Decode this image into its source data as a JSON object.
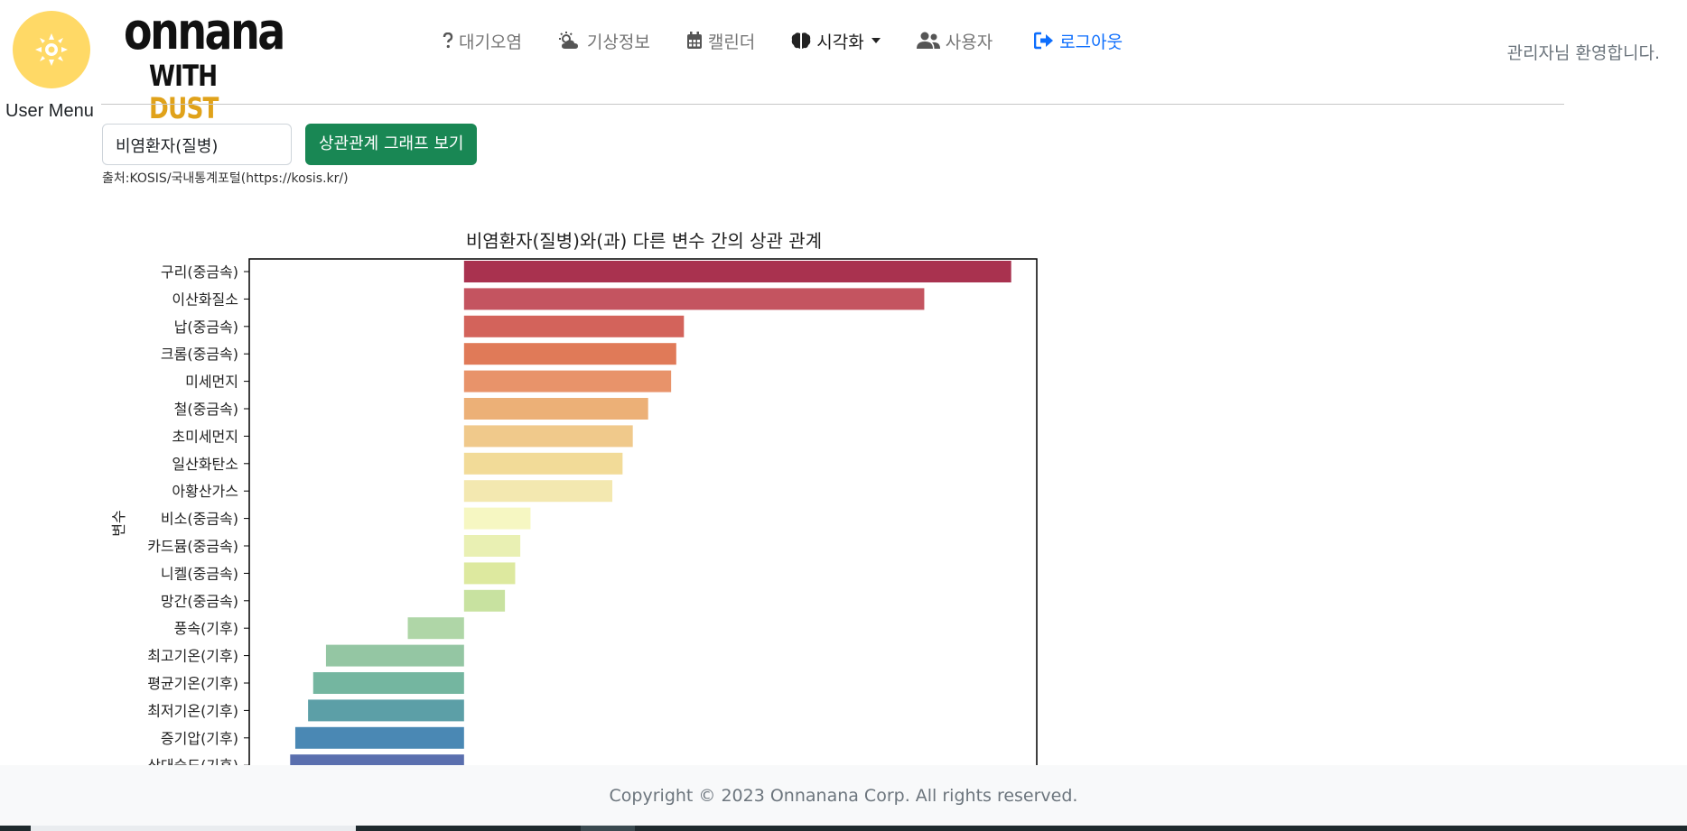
{
  "logo": {
    "icon": "sun-gear-icon",
    "line1": "onnana",
    "line2_a": "WITH",
    "line2_b": "DUST",
    "circle_color": "#ffd966",
    "dust_color": "#e0a21a"
  },
  "user_menu": "User Menu",
  "nav": {
    "items": [
      {
        "label": "대기오염",
        "icon": "question-icon"
      },
      {
        "label": "기상정보",
        "icon": "cloud-sun-icon"
      },
      {
        "label": "캘린더",
        "icon": "calendar-icon"
      },
      {
        "label": "시각화",
        "icon": "brain-icon"
      },
      {
        "label": "사용자",
        "icon": "users-icon"
      },
      {
        "label": "로그아웃",
        "icon": "logout-icon"
      }
    ],
    "logout_color": "#0d6efd"
  },
  "welcome": "관리자님 환영합니다.",
  "controls": {
    "selected": "비염환자(질병)",
    "button_label": "상관관계 그래프 보기",
    "button_color": "#198754",
    "source": "출처:KOSIS/국내통계포털(https://kosis.kr/)"
  },
  "chart_data": {
    "type": "bar",
    "orientation": "horizontal",
    "title": "비염환자(질병)와(과) 다른 변수 간의 상관 관계",
    "ylabel": "변수",
    "xlabel": "",
    "xlim": [
      -0.42,
      1.12
    ],
    "grid": false,
    "legend": "none",
    "palette": "Spectral",
    "categories": [
      "구리(중금속)",
      "이산화질소",
      "납(중금속)",
      "크롬(중금속)",
      "미세먼지",
      "철(중금속)",
      "초미세먼지",
      "일산화탄소",
      "아황산가스",
      "비소(중금속)",
      "카드뮴(중금속)",
      "니켈(중금속)",
      "망간(중금속)",
      "풍속(기후)",
      "최고기온(기후)",
      "평균기온(기후)",
      "최저기온(기후)",
      "증기압(기후)",
      "상대습도(기후)"
    ],
    "values": [
      1.07,
      0.9,
      0.43,
      0.415,
      0.405,
      0.36,
      0.33,
      0.31,
      0.29,
      0.13,
      0.11,
      0.1,
      0.08,
      -0.11,
      -0.27,
      -0.295,
      -0.305,
      -0.33,
      -0.34
    ],
    "colors": [
      "#a9324f",
      "#c45460",
      "#d3635b",
      "#e07a58",
      "#e8936a",
      "#ecb077",
      "#f0c98b",
      "#f2db98",
      "#f3e8b0",
      "#f6f7c2",
      "#e9f0b3",
      "#dde99f",
      "#c8e2a0",
      "#afd6a7",
      "#94c6a3",
      "#74b6a0",
      "#5c9fa7",
      "#4a88b4",
      "#5a6fae"
    ]
  },
  "footer": "Copyright © 2023 Onnanana Corp. All rights reserved."
}
